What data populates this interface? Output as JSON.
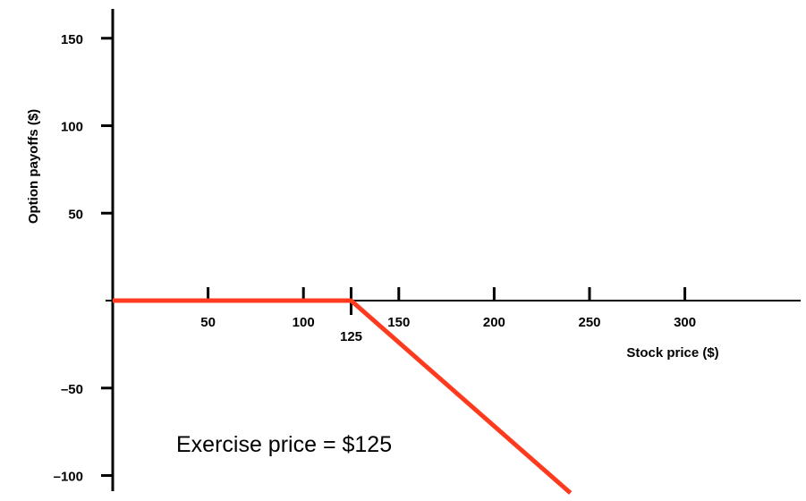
{
  "chart_data": {
    "type": "line",
    "title": "",
    "xlabel": "Stock price ($)",
    "ylabel": "Option payoffs ($)",
    "xlim": [
      0,
      360
    ],
    "ylim": [
      -105,
      165
    ],
    "x_ticks": [
      50,
      100,
      125,
      150,
      200,
      250,
      300
    ],
    "x_tick_labels": [
      "50",
      "100",
      "125",
      "150",
      "200",
      "250",
      "300"
    ],
    "y_ticks": [
      150,
      100,
      50,
      -50,
      -100
    ],
    "y_tick_labels": [
      "150",
      "100",
      "50",
      "–50",
      "–100"
    ],
    "grid": false,
    "series": [
      {
        "color": "#ff3b1f",
        "x": [
          0,
          125,
          240
        ],
        "y": [
          0,
          0,
          -110
        ]
      }
    ],
    "annotations": [
      {
        "text": "Exercise price = $125"
      }
    ]
  }
}
